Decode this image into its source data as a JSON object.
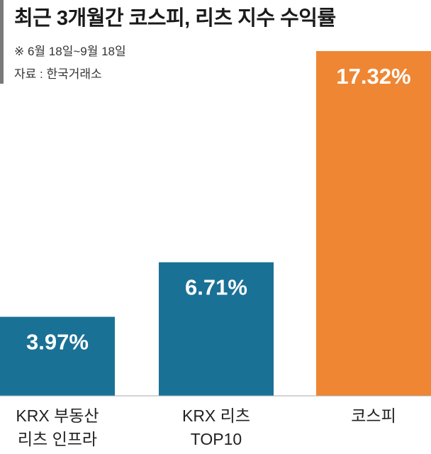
{
  "header": {
    "title": "최근 3개월간 코스피, 리츠 지수 수익률",
    "period_note": "※ 6월 18일~9월 18일",
    "source": "자료 : 한국거래소"
  },
  "colors": {
    "reits": "#1a7196",
    "kospi": "#ef8633",
    "baseline": "#aaaaaa"
  },
  "chart_data": {
    "type": "bar",
    "title": "최근 3개월간 코스피, 리츠 지수 수익률",
    "xlabel": "",
    "ylabel": "",
    "unit": "%",
    "ylim": [
      0,
      17.32
    ],
    "grid": false,
    "categories": [
      [
        "KRX 부동산",
        "리츠 인프라"
      ],
      [
        "KRX 리츠",
        "TOP10"
      ],
      [
        "코스피"
      ]
    ],
    "values": [
      3.97,
      6.71,
      17.32
    ],
    "value_labels": [
      "3.97%",
      "6.71%",
      "17.32%"
    ],
    "bar_colors": [
      "#1a7196",
      "#1a7196",
      "#ef8633"
    ]
  }
}
